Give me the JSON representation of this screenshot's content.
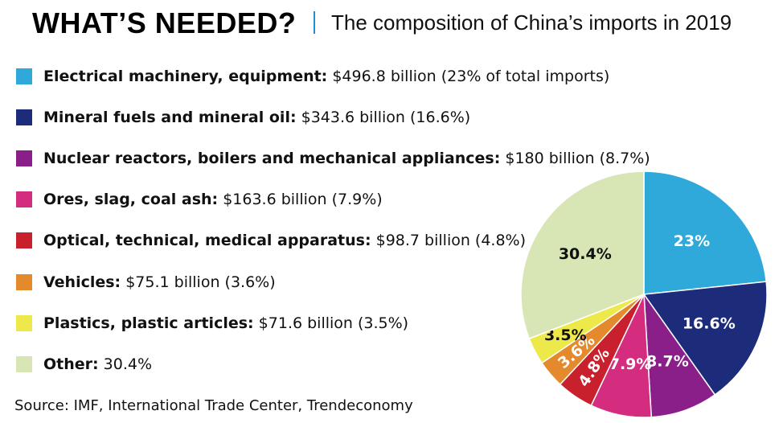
{
  "header": {
    "headline": "WHAT’S NEEDED?",
    "subtitle": "The composition of China’s imports in 2019"
  },
  "legend": [
    {
      "category": "Electrical machinery, equipment:",
      "detail": " $496.8 billion (23% of total imports)",
      "color": "#2ea9da"
    },
    {
      "category": "Mineral fuels and mineral oil:",
      "detail": " $343.6 billion (16.6%)",
      "color": "#1c2b7a"
    },
    {
      "category": "Nuclear reactors, boilers and mechanical appliances:",
      "detail": " $180 billion (8.7%)",
      "color": "#8a1f8a"
    },
    {
      "category": "Ores, slag, coal ash:",
      "detail": " $163.6 billion (7.9%)",
      "color": "#d42c7f"
    },
    {
      "category": "Optical, technical, medical apparatus:",
      "detail": " $98.7 billion (4.8%)",
      "color": "#c8202c"
    },
    {
      "category": "Vehicles:",
      "detail": " $75.1 billion (3.6%)",
      "color": "#e48a2c"
    },
    {
      "category": "Plastics, plastic articles:",
      "detail": " $71.6 billion (3.5%)",
      "color": "#eee94a"
    },
    {
      "category": "Other:",
      "detail": " 30.4%",
      "color": "#d8e6b6"
    }
  ],
  "source": "Source: IMF, International Trade Center, Trendeconomy",
  "chart_data": {
    "type": "pie",
    "title": "The composition of China’s imports in 2019",
    "start": "12 o'clock",
    "direction": "clockwise",
    "slices": [
      {
        "category": "Electrical machinery, equipment",
        "value": 23,
        "label": "23%",
        "color": "#2ea9da",
        "label_color": "#ffffff"
      },
      {
        "category": "Mineral fuels and mineral oil",
        "value": 16.6,
        "label": "16.6%",
        "color": "#1c2b7a",
        "label_color": "#ffffff"
      },
      {
        "category": "Nuclear reactors, boilers and mechanical appliances",
        "value": 8.7,
        "label": "8.7%",
        "color": "#8a1f8a",
        "label_color": "#ffffff"
      },
      {
        "category": "Ores, slag, coal ash",
        "value": 7.9,
        "label": "7.9%",
        "color": "#d42c7f",
        "label_color": "#ffffff"
      },
      {
        "category": "Optical, technical, medical apparatus",
        "value": 4.8,
        "label": "4.8%",
        "color": "#c8202c",
        "label_color": "#ffffff",
        "rotated": true
      },
      {
        "category": "Vehicles",
        "value": 3.6,
        "label": "3.6%",
        "color": "#e48a2c",
        "label_color": "#ffffff",
        "rotated": true
      },
      {
        "category": "Plastics, plastic articles",
        "value": 3.5,
        "label": "3.5%",
        "color": "#eee94a",
        "label_color": "#111111"
      },
      {
        "category": "Other",
        "value": 30.4,
        "label": "30.4%",
        "color": "#d8e6b6",
        "label_color": "#111111"
      }
    ]
  }
}
